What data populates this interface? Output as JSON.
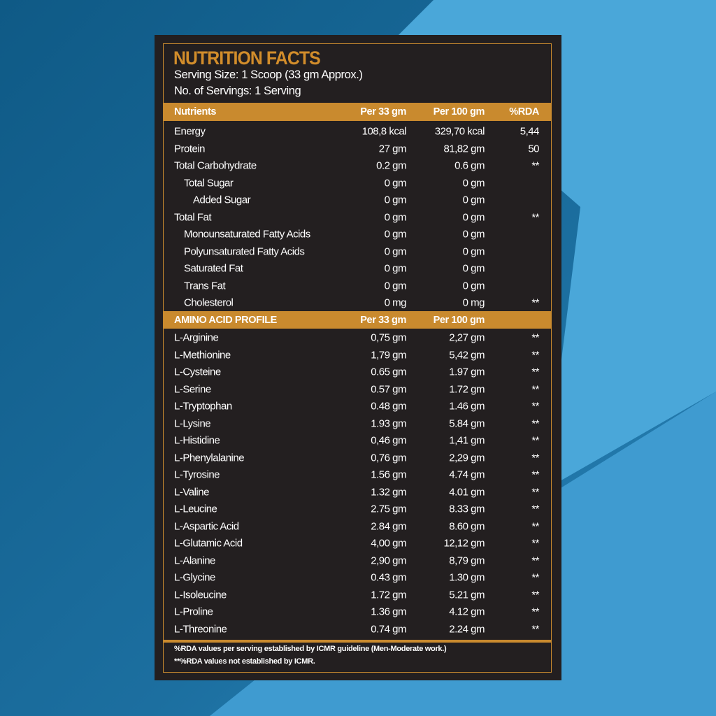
{
  "title": "NUTRITION FACTS",
  "serving_size": "Serving Size: 1 Scoop (33 gm Approx.)",
  "servings": "No. of Servings: 1 Serving",
  "colors": {
    "accent": "#c98a2e",
    "panel": "#231f20",
    "background": "#1b6b99"
  },
  "nutrients_header": [
    "Nutrients",
    "Per 33 gm",
    "Per 100 gm",
    "%RDA"
  ],
  "nutrients": [
    {
      "name": "Energy",
      "per33": "108,8 kcal",
      "per100": "329,70 kcal",
      "rda": "5,44",
      "indent": 0
    },
    {
      "name": "Protein",
      "per33": "27 gm",
      "per100": "81,82 gm",
      "rda": "50",
      "indent": 0
    },
    {
      "name": "Total Carbohydrate",
      "per33": "0.2 gm",
      "per100": "0.6 gm",
      "rda": "**",
      "indent": 0
    },
    {
      "name": "Total Sugar",
      "per33": "0 gm",
      "per100": "0 gm",
      "rda": "",
      "indent": 1
    },
    {
      "name": "Added Sugar",
      "per33": "0 gm",
      "per100": "0 gm",
      "rda": "",
      "indent": 2
    },
    {
      "name": "Total Fat",
      "per33": "0 gm",
      "per100": "0 gm",
      "rda": "**",
      "indent": 0
    },
    {
      "name": "Monounsaturated Fatty Acids",
      "per33": "0 gm",
      "per100": "0 gm",
      "rda": "",
      "indent": 1
    },
    {
      "name": "Polyunsaturated Fatty Acids",
      "per33": "0 gm",
      "per100": "0 gm",
      "rda": "",
      "indent": 1
    },
    {
      "name": "Saturated Fat",
      "per33": "0 gm",
      "per100": "0 gm",
      "rda": "",
      "indent": 1
    },
    {
      "name": "Trans Fat",
      "per33": "0 gm",
      "per100": "0 gm",
      "rda": "",
      "indent": 1
    },
    {
      "name": "Cholesterol",
      "per33": "0 mg",
      "per100": "0 mg",
      "rda": "**",
      "indent": 1
    }
  ],
  "amino_header": [
    "AMINO ACID PROFILE",
    "Per 33 gm",
    "Per 100 gm"
  ],
  "amino_acids": [
    {
      "name": "L-Arginine",
      "per33": "0,75 gm",
      "per100": "2,27 gm",
      "rda": "**"
    },
    {
      "name": "L-Methionine",
      "per33": "1,79 gm",
      "per100": "5,42 gm",
      "rda": "**"
    },
    {
      "name": "L-Cysteine",
      "per33": "0.65 gm",
      "per100": "1.97 gm",
      "rda": "**"
    },
    {
      "name": "L-Serine",
      "per33": "0.57 gm",
      "per100": "1.72 gm",
      "rda": "**"
    },
    {
      "name": "L-Tryptophan",
      "per33": "0.48 gm",
      "per100": "1.46 gm",
      "rda": "**"
    },
    {
      "name": "L-Lysine",
      "per33": "1.93 gm",
      "per100": "5.84 gm",
      "rda": "**"
    },
    {
      "name": "L-Histidine",
      "per33": "0,46 gm",
      "per100": "1,41 gm",
      "rda": "**"
    },
    {
      "name": "L-Phenylalanine",
      "per33": "0,76 gm",
      "per100": "2,29 gm",
      "rda": "**"
    },
    {
      "name": "L-Tyrosine",
      "per33": "1.56 gm",
      "per100": "4.74 gm",
      "rda": "**"
    },
    {
      "name": "L-Valine",
      "per33": "1.32 gm",
      "per100": "4.01 gm",
      "rda": "**"
    },
    {
      "name": "L-Leucine",
      "per33": "2.75 gm",
      "per100": "8.33 gm",
      "rda": "**"
    },
    {
      "name": "L-Aspartic Acid",
      "per33": "2.84 gm",
      "per100": "8.60 gm",
      "rda": "**"
    },
    {
      "name": "L-Glutamic Acid",
      "per33": "4,00 gm",
      "per100": "12,12 gm",
      "rda": "**"
    },
    {
      "name": "L-Alanine",
      "per33": "2,90 gm",
      "per100": "8,79 gm",
      "rda": "**"
    },
    {
      "name": "L-Glycine",
      "per33": "0.43 gm",
      "per100": "1.30 gm",
      "rda": "**"
    },
    {
      "name": "L-Isoleucine",
      "per33": "1.72 gm",
      "per100": "5.21 gm",
      "rda": "**"
    },
    {
      "name": "L-Proline",
      "per33": "1.36 gm",
      "per100": "4.12 gm",
      "rda": "**"
    },
    {
      "name": "L-Threonine",
      "per33": "0.74 gm",
      "per100": "2.24 gm",
      "rda": "**"
    }
  ],
  "footnotes": [
    "%RDA values per serving established by ICMR guideline (Men-Moderate work.)",
    "**%RDA values not established by ICMR."
  ]
}
